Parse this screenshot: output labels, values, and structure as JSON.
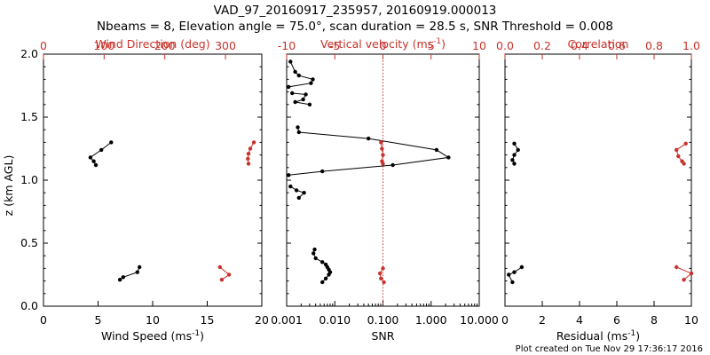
{
  "header": {
    "title": "VAD_97_20160917_235957, 20160919.000013",
    "subtitle": "Nbeams = 8, Elevation angle = 75.0°, scan duration = 28.5 s, SNR Threshold = 0.008"
  },
  "footer": {
    "created": "Plot created on Tue Nov 29 17:36:17 2016"
  },
  "colors": {
    "primary": "#000000",
    "secondary": "#c8322a"
  },
  "chart_data": [
    {
      "type": "line",
      "ylabel": "z (km AGL)",
      "ylim": [
        0,
        2.0
      ],
      "yticks": [
        "0.0",
        "0.5",
        "1.0",
        "1.5",
        "2.0"
      ],
      "bottom_axis": {
        "label": "Wind Speed (ms",
        "exp": "-1",
        "close": ")",
        "range": [
          0,
          20
        ],
        "ticks": [
          "0",
          "5",
          "10",
          "15",
          "20"
        ]
      },
      "top_axis": {
        "label": "Wind Direction (deg)",
        "range": [
          0,
          360
        ],
        "ticks": [
          "0",
          "100",
          "200",
          "300"
        ]
      },
      "series": [
        {
          "axis": "bottom",
          "color": "#000000",
          "points": [
            [
              6.2,
              1.3
            ],
            [
              5.3,
              1.24
            ],
            [
              4.3,
              1.18
            ],
            [
              4.6,
              1.15
            ],
            [
              4.8,
              1.12
            ]
          ]
        },
        {
          "axis": "bottom",
          "color": "#000000",
          "points": [
            [
              8.8,
              0.31
            ],
            [
              8.6,
              0.27
            ],
            [
              7.3,
              0.23
            ],
            [
              7.0,
              0.21
            ]
          ]
        },
        {
          "axis": "top",
          "color": "#c8322a",
          "points": [
            [
              347,
              1.3
            ],
            [
              341,
              1.25
            ],
            [
              338,
              1.21
            ],
            [
              337,
              1.17
            ],
            [
              338,
              1.13
            ]
          ]
        },
        {
          "axis": "top",
          "color": "#c8322a",
          "points": [
            [
              291,
              0.31
            ],
            [
              306,
              0.25
            ],
            [
              294,
              0.21
            ]
          ]
        }
      ]
    },
    {
      "type": "line",
      "bottom_axis": {
        "label": "SNR",
        "scale": "log",
        "range": [
          0.001,
          10.0
        ],
        "ticks": [
          "0.001",
          "0.010",
          "0.100",
          "1.000",
          "10.000"
        ]
      },
      "top_axis": {
        "label": "Vertical velocity (ms",
        "exp": "-1",
        "close": ")",
        "range": [
          -10,
          10
        ],
        "ticks": [
          "-10",
          "-5",
          "0",
          "5",
          "10"
        ]
      },
      "reference_line": {
        "axis": "top",
        "value": 0
      },
      "series": [
        {
          "axis": "bottom",
          "color": "#000000",
          "points": [
            [
              0.0012,
              1.94
            ],
            [
              0.0015,
              1.86
            ],
            [
              0.0018,
              1.83
            ],
            [
              0.0035,
              1.8
            ],
            [
              0.0032,
              1.77
            ],
            [
              0.0011,
              1.74
            ]
          ]
        },
        {
          "axis": "bottom",
          "color": "#000000",
          "points": [
            [
              0.0013,
              1.69
            ],
            [
              0.0025,
              1.68
            ],
            [
              0.0022,
              1.64
            ],
            [
              0.0015,
              1.62
            ],
            [
              0.003,
              1.6
            ]
          ]
        },
        {
          "axis": "bottom",
          "color": "#000000",
          "points": [
            [
              0.0017,
              1.42
            ],
            [
              0.0018,
              1.38
            ],
            [
              0.05,
              1.33
            ],
            [
              1.3,
              1.24
            ],
            [
              2.3,
              1.18
            ],
            [
              0.16,
              1.12
            ],
            [
              0.0055,
              1.07
            ],
            [
              0.0011,
              1.04
            ]
          ]
        },
        {
          "axis": "bottom",
          "color": "#000000",
          "points": [
            [
              0.0012,
              0.95
            ],
            [
              0.0016,
              0.92
            ],
            [
              0.0023,
              0.9
            ],
            [
              0.0018,
              0.86
            ]
          ]
        },
        {
          "axis": "bottom",
          "color": "#000000",
          "points": [
            [
              0.0038,
              0.45
            ],
            [
              0.0036,
              0.42
            ],
            [
              0.004,
              0.38
            ],
            [
              0.0055,
              0.35
            ],
            [
              0.0065,
              0.33
            ],
            [
              0.007,
              0.31
            ],
            [
              0.0075,
              0.29
            ],
            [
              0.008,
              0.27
            ],
            [
              0.0075,
              0.25
            ],
            [
              0.0065,
              0.22
            ],
            [
              0.0055,
              0.19
            ]
          ]
        },
        {
          "axis": "top",
          "color": "#c8322a",
          "points": [
            [
              -0.2,
              1.3
            ],
            [
              -0.1,
              1.25
            ],
            [
              0.0,
              1.2
            ],
            [
              -0.1,
              1.15
            ],
            [
              0.0,
              1.13
            ]
          ]
        },
        {
          "axis": "top",
          "color": "#c8322a",
          "points": [
            [
              0.0,
              0.3
            ],
            [
              -0.3,
              0.26
            ],
            [
              -0.2,
              0.22
            ],
            [
              0.1,
              0.19
            ]
          ]
        }
      ]
    },
    {
      "type": "line",
      "bottom_axis": {
        "label": "Residual (ms",
        "exp": "-1",
        "close": ")",
        "range": [
          0,
          10
        ],
        "ticks": [
          "0",
          "2",
          "4",
          "6",
          "8",
          "10"
        ]
      },
      "top_axis": {
        "label": "Correlation",
        "range": [
          0,
          1.0
        ],
        "ticks": [
          "0.0",
          "0.2",
          "0.4",
          "0.6",
          "0.8",
          "1.0"
        ]
      },
      "series": [
        {
          "axis": "bottom",
          "color": "#000000",
          "points": [
            [
              0.5,
              1.29
            ],
            [
              0.7,
              1.24
            ],
            [
              0.5,
              1.2
            ],
            [
              0.4,
              1.16
            ],
            [
              0.5,
              1.13
            ]
          ]
        },
        {
          "axis": "bottom",
          "color": "#000000",
          "points": [
            [
              0.9,
              0.31
            ],
            [
              0.5,
              0.27
            ],
            [
              0.2,
              0.25
            ],
            [
              0.4,
              0.19
            ]
          ]
        },
        {
          "axis": "top",
          "color": "#c8322a",
          "points": [
            [
              0.97,
              1.29
            ],
            [
              0.92,
              1.24
            ],
            [
              0.93,
              1.19
            ],
            [
              0.95,
              1.15
            ],
            [
              0.96,
              1.13
            ]
          ]
        },
        {
          "axis": "top",
          "color": "#c8322a",
          "points": [
            [
              0.92,
              0.31
            ],
            [
              1.0,
              0.26
            ],
            [
              0.96,
              0.21
            ]
          ]
        }
      ]
    }
  ]
}
